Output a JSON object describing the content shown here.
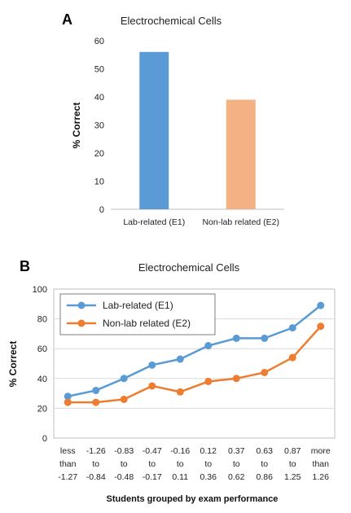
{
  "panels": {
    "a_letter": "A",
    "b_letter": "B"
  },
  "colors": {
    "blue": "#5b9bd5",
    "orange": "#ed7d31",
    "light_orange": "#f4b183",
    "grid": "#d9d9d9",
    "frame": "#bfbfbf"
  },
  "chart_data": [
    {
      "type": "bar",
      "title": "Electrochemical Cells",
      "ylabel": "% Correct",
      "xlabel": "",
      "ylim": [
        0,
        60
      ],
      "yticks": [
        0,
        10,
        20,
        30,
        40,
        50,
        60
      ],
      "categories": [
        "Lab-related (E1)",
        "Non-lab related (E2)"
      ],
      "values": [
        56,
        39
      ],
      "grid": false
    },
    {
      "type": "line",
      "title": "Electrochemical Cells",
      "ylabel": "% Correct",
      "xlabel": "Students grouped by exam performance",
      "ylim": [
        0,
        100
      ],
      "yticks": [
        0,
        20,
        40,
        60,
        80,
        100
      ],
      "grid": true,
      "legend": "top-left",
      "categories": [
        [
          "less",
          "than",
          "-1.27"
        ],
        [
          "-1.26",
          "to",
          "-0.84"
        ],
        [
          "-0.83",
          "to",
          "-0.48"
        ],
        [
          "-0.47",
          "to",
          "-0.17"
        ],
        [
          "-0.16",
          "to",
          "0.11"
        ],
        [
          "0.12",
          "to",
          "0.36"
        ],
        [
          "0.37",
          "to",
          "0.62"
        ],
        [
          "0.63",
          "to",
          "0.86"
        ],
        [
          "0.87",
          "to",
          "1.25"
        ],
        [
          "more",
          "than",
          "1.26"
        ]
      ],
      "series": [
        {
          "name": "Lab-related (E1)",
          "values": [
            28,
            32,
            40,
            49,
            53,
            62,
            67,
            67,
            74,
            89
          ]
        },
        {
          "name": "Non-lab related (E2)",
          "values": [
            24,
            24,
            26,
            35,
            31,
            38,
            40,
            44,
            54,
            75
          ]
        }
      ]
    }
  ]
}
